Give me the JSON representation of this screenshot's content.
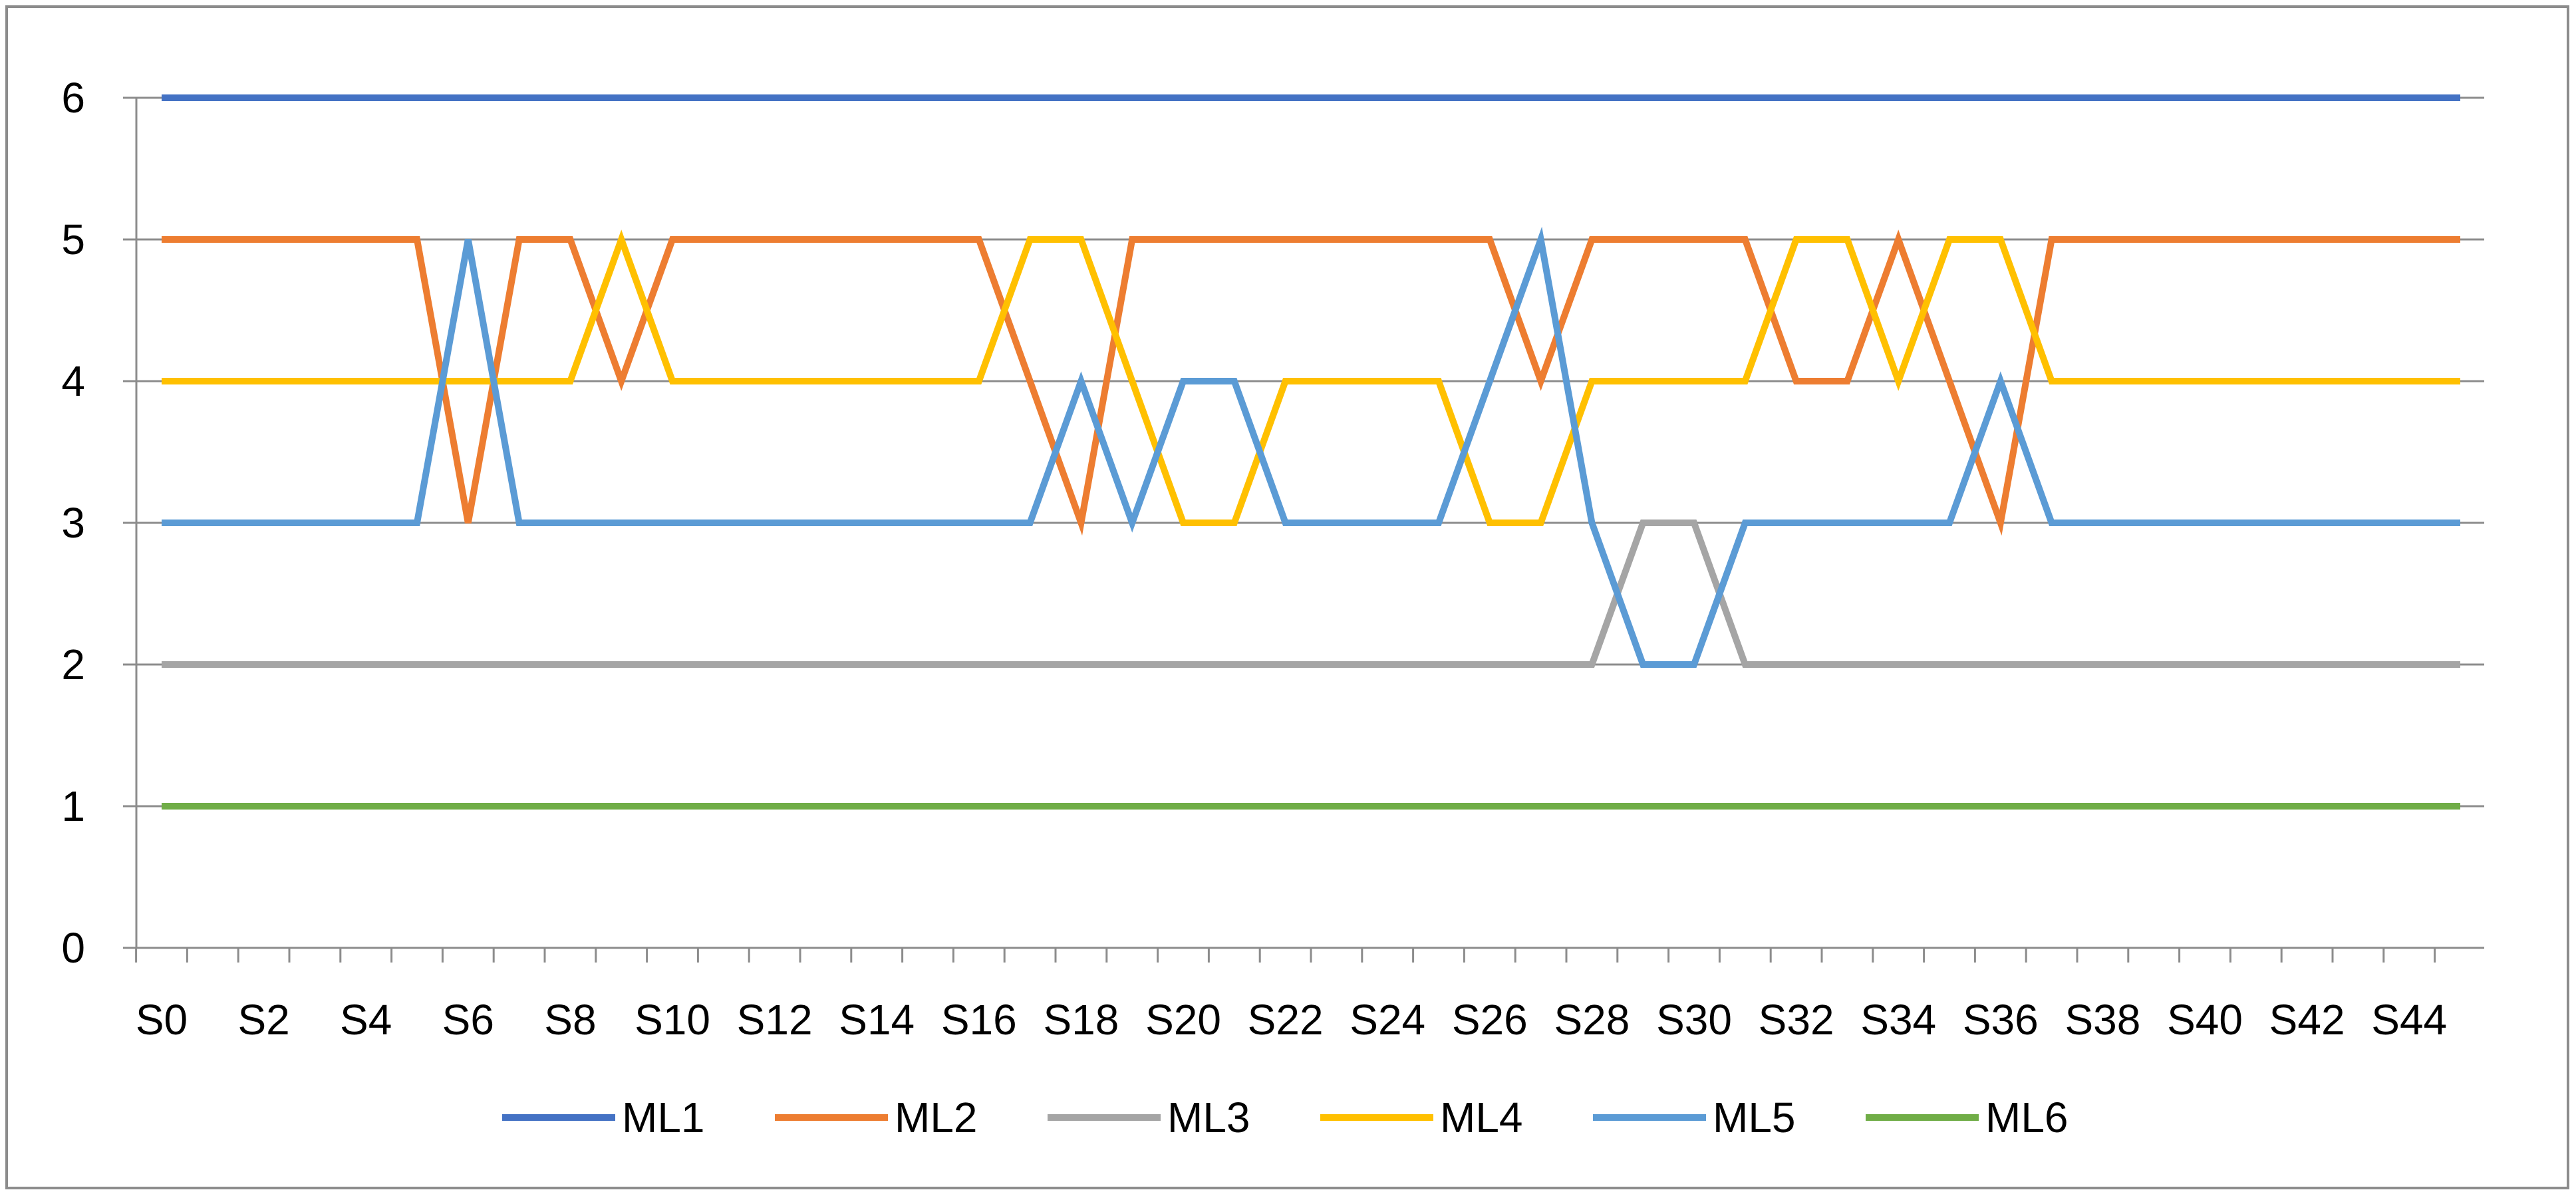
{
  "chart_data": {
    "type": "line",
    "title": "",
    "xlabel": "",
    "ylabel": "",
    "ylim": [
      0,
      6
    ],
    "y_ticks": [
      "0",
      "1",
      "2",
      "3",
      "4",
      "5",
      "6"
    ],
    "grid": "horizontal",
    "legend_position": "bottom",
    "categories": [
      "S0",
      "S1",
      "S2",
      "S3",
      "S4",
      "S5",
      "S6",
      "S7",
      "S8",
      "S9",
      "S10",
      "S11",
      "S12",
      "S13",
      "S14",
      "S15",
      "S16",
      "S17",
      "S18",
      "S19",
      "S20",
      "S21",
      "S22",
      "S23",
      "S24",
      "S25",
      "S26",
      "S27",
      "S28",
      "S29",
      "S30",
      "S31",
      "S32",
      "S33",
      "S34",
      "S35",
      "S36",
      "S37",
      "S38",
      "S39",
      "S40",
      "S41",
      "S42",
      "S43",
      "S44",
      "S45"
    ],
    "x_tick_labels": [
      "S0",
      "S2",
      "S4",
      "S6",
      "S8",
      "S10",
      "S12",
      "S14",
      "S16",
      "S18",
      "S20",
      "S22",
      "S24",
      "S26",
      "S28",
      "S30",
      "S32",
      "S34",
      "S36",
      "S38",
      "S40",
      "S42",
      "S44"
    ],
    "series": [
      {
        "name": "ML1",
        "color": "#4472C4",
        "values": [
          6,
          6,
          6,
          6,
          6,
          6,
          6,
          6,
          6,
          6,
          6,
          6,
          6,
          6,
          6,
          6,
          6,
          6,
          6,
          6,
          6,
          6,
          6,
          6,
          6,
          6,
          6,
          6,
          6,
          6,
          6,
          6,
          6,
          6,
          6,
          6,
          6,
          6,
          6,
          6,
          6,
          6,
          6,
          6,
          6,
          6
        ]
      },
      {
        "name": "ML2",
        "color": "#ED7D31",
        "values": [
          5,
          5,
          5,
          5,
          5,
          5,
          3,
          5,
          5,
          4,
          5,
          5,
          5,
          5,
          5,
          5,
          5,
          4,
          3,
          5,
          5,
          5,
          5,
          5,
          5,
          5,
          5,
          4,
          5,
          5,
          5,
          5,
          4,
          4,
          5,
          4,
          3,
          5,
          5,
          5,
          5,
          5,
          5,
          5,
          5,
          5
        ]
      },
      {
        "name": "ML3",
        "color": "#A5A5A5",
        "values": [
          2,
          2,
          2,
          2,
          2,
          2,
          2,
          2,
          2,
          2,
          2,
          2,
          2,
          2,
          2,
          2,
          2,
          2,
          2,
          2,
          2,
          2,
          2,
          2,
          2,
          2,
          2,
          2,
          2,
          3,
          3,
          2,
          2,
          2,
          2,
          2,
          2,
          2,
          2,
          2,
          2,
          2,
          2,
          2,
          2,
          2
        ]
      },
      {
        "name": "ML4",
        "color": "#FFC000",
        "values": [
          4,
          4,
          4,
          4,
          4,
          4,
          4,
          4,
          4,
          5,
          4,
          4,
          4,
          4,
          4,
          4,
          4,
          5,
          5,
          4,
          3,
          3,
          4,
          4,
          4,
          4,
          3,
          3,
          4,
          4,
          4,
          4,
          5,
          5,
          4,
          5,
          5,
          4,
          4,
          4,
          4,
          4,
          4,
          4,
          4,
          4
        ]
      },
      {
        "name": "ML5",
        "color": "#5B9BD5",
        "values": [
          3,
          3,
          3,
          3,
          3,
          3,
          5,
          3,
          3,
          3,
          3,
          3,
          3,
          3,
          3,
          3,
          3,
          3,
          4,
          3,
          4,
          4,
          3,
          3,
          3,
          3,
          4,
          5,
          3,
          2,
          2,
          3,
          3,
          3,
          3,
          3,
          4,
          3,
          3,
          3,
          3,
          3,
          3,
          3,
          3,
          3
        ]
      },
      {
        "name": "ML6",
        "color": "#70AD47",
        "values": [
          1,
          1,
          1,
          1,
          1,
          1,
          1,
          1,
          1,
          1,
          1,
          1,
          1,
          1,
          1,
          1,
          1,
          1,
          1,
          1,
          1,
          1,
          1,
          1,
          1,
          1,
          1,
          1,
          1,
          1,
          1,
          1,
          1,
          1,
          1,
          1,
          1,
          1,
          1,
          1,
          1,
          1,
          1,
          1,
          1,
          1
        ]
      }
    ]
  }
}
